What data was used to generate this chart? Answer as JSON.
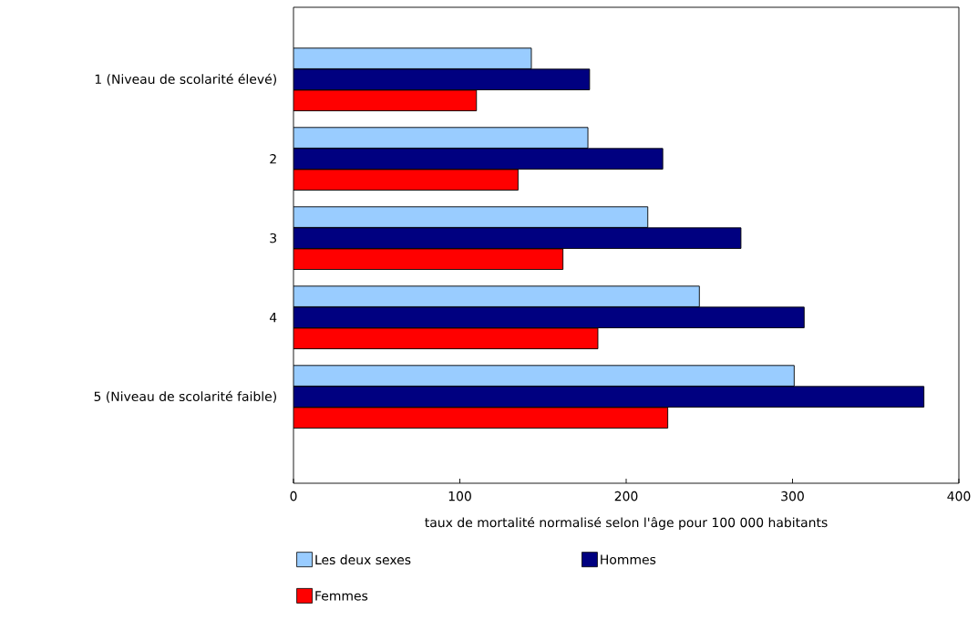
{
  "chart_data": {
    "type": "bar",
    "orientation": "horizontal",
    "categories": [
      "1 (Niveau de scolarité élevé)",
      "2",
      "3",
      "4",
      "5 (Niveau de scolarité faible)"
    ],
    "xlabel": "taux de mortalité normalisé selon l'âge pour 100 000 habitants",
    "xlim": [
      0,
      400
    ],
    "xticks": [
      0,
      100,
      200,
      300,
      400
    ],
    "legend": "bottom",
    "grid": false,
    "series": [
      {
        "name": "Les deux sexes",
        "color": "#99ccff",
        "values": [
          143,
          177,
          213,
          244,
          301
        ]
      },
      {
        "name": "Hommes",
        "color": "#000080",
        "values": [
          178,
          222,
          269,
          307,
          379
        ]
      },
      {
        "name": "Femmes",
        "color": "#ff0000",
        "values": [
          110,
          135,
          162,
          183,
          225
        ]
      }
    ]
  }
}
